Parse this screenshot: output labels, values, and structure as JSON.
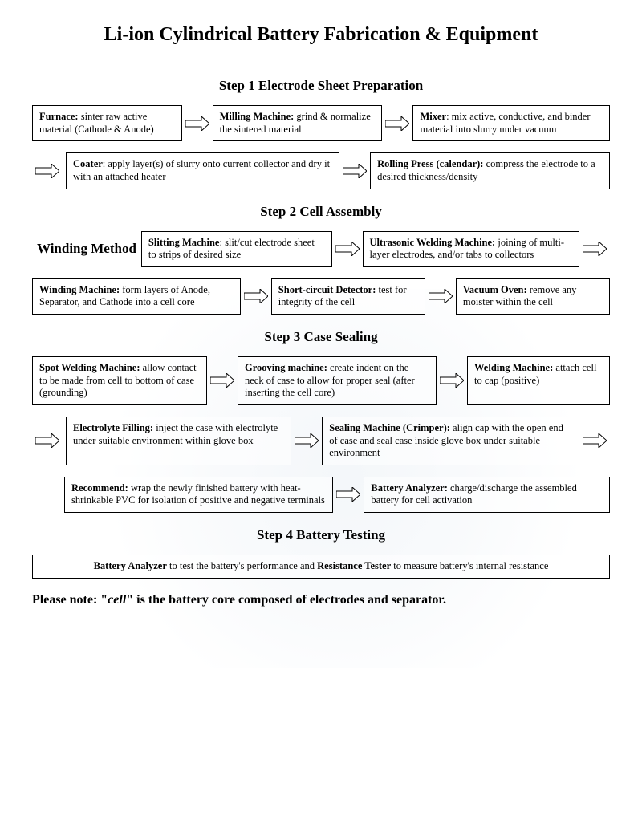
{
  "title": "Li-ion Cylindrical Battery Fabrication & Equipment",
  "title_fontsize": 24,
  "step_title_fontsize": 17,
  "box_fontsize": 12.5,
  "colors": {
    "text": "#000000",
    "border": "#000000",
    "background": "#ffffff",
    "arrow_stroke": "#000000",
    "arrow_fill": "#ffffff",
    "watermark_tint": "#c4d2e0"
  },
  "arrow": {
    "width": 30,
    "height": 18,
    "stroke_width": 1
  },
  "steps": [
    {
      "title": "Step 1 Electrode Sheet Preparation",
      "rows": [
        {
          "lead_arrow": false,
          "items": [
            {
              "bold": "Furnace:",
              "text": " sinter raw active material (Cathode & Anode)",
              "flex": 1
            },
            {
              "bold": "Milling Machine:",
              "text": " grind & normalize the sintered material",
              "flex": 1.15
            },
            {
              "bold": "Mixer",
              "text": ": mix active, conductive, and binder material into slurry under vacuum",
              "flex": 1.35
            }
          ],
          "trail_arrow": false
        },
        {
          "lead_arrow": true,
          "items": [
            {
              "bold": "Coater",
              "text": ": apply layer(s) of slurry onto current collector and dry it with an attached heater",
              "flex": 1.15
            },
            {
              "bold": "Rolling Press (calendar):",
              "text": " compress the electrode to a desired thickness/density",
              "flex": 1
            }
          ],
          "trail_arrow": false
        }
      ]
    },
    {
      "title": "Step 2 Cell Assembly",
      "rows": [
        {
          "lead_arrow": false,
          "label": "Winding Method",
          "items": [
            {
              "bold": "Slitting Machine",
              "text": ": slit/cut electrode sheet to strips of desired size",
              "flex": 1
            },
            {
              "bold": "Ultrasonic Welding Machine:",
              "text": " joining of multi-layer electrodes, and/or tabs to collectors",
              "flex": 1.15
            }
          ],
          "trail_arrow": true
        },
        {
          "lead_arrow": false,
          "items": [
            {
              "bold": "Winding Machine:",
              "text": " form layers of Anode, Separator, and Cathode into a cell core",
              "flex": 1.25
            },
            {
              "bold": "Short-circuit Detector:",
              "text": " test for integrity of the cell",
              "flex": 0.9
            },
            {
              "bold": "Vacuum Oven:",
              "text": " remove any moister within the cell",
              "flex": 0.9
            }
          ],
          "trail_arrow": false
        }
      ]
    },
    {
      "title": "Step 3 Case Sealing",
      "rows": [
        {
          "lead_arrow": false,
          "items": [
            {
              "bold": "Spot Welding Machine:",
              "text": " allow contact to be made from cell to bottom of case (grounding)",
              "flex": 1
            },
            {
              "bold": "Grooving machine:",
              "text": " create indent on the neck of case to allow for proper seal (after inserting the cell core)",
              "flex": 1.15
            },
            {
              "bold": "Welding Machine:",
              "text": " attach cell to cap (positive)",
              "flex": 0.8
            }
          ],
          "trail_arrow": false
        },
        {
          "lead_arrow": true,
          "items": [
            {
              "bold": "Electrolyte Filling:",
              "text": " inject the case with electrolyte under suitable environment within glove box",
              "flex": 1
            },
            {
              "bold": "Sealing Machine (Crimper):",
              "text": " align cap with the open end of case and seal case inside glove box under suitable environment",
              "flex": 1.15
            }
          ],
          "trail_arrow": true
        },
        {
          "lead_arrow": false,
          "indent": 40,
          "items": [
            {
              "bold": "Recommend:",
              "text": " wrap the newly finished battery with heat-shrinkable PVC for isolation of positive and negative terminals",
              "flex": 1.1
            },
            {
              "bold": "Battery Analyzer:",
              "text": " charge/discharge the assembled battery for cell activation",
              "flex": 1
            }
          ],
          "trail_arrow": false
        }
      ]
    },
    {
      "title": "Step 4 Battery Testing",
      "rows": [
        {
          "lead_arrow": false,
          "items": [
            {
              "html_segments": [
                {
                  "bold": true,
                  "text": "Battery Analyzer"
                },
                {
                  "bold": false,
                  "text": " to test the battery's performance and "
                },
                {
                  "bold": true,
                  "text": "Resistance Tester"
                },
                {
                  "bold": false,
                  "text": " to measure battery's internal resistance"
                }
              ],
              "flex": 1,
              "center": true
            }
          ],
          "trail_arrow": false,
          "no_arrows_between": true
        }
      ]
    }
  ],
  "footnote_prefix": "Please note: \"",
  "footnote_cell": "cell",
  "footnote_suffix": "\" is the battery core composed of electrodes and separator."
}
